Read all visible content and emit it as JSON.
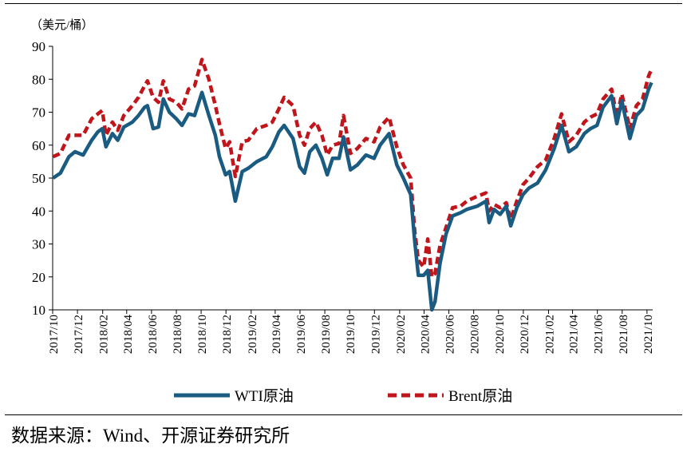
{
  "source_text": "数据来源：Wind、开源证券研究所",
  "chart_data": {
    "type": "line",
    "unit_label": "（美元/桶）",
    "ylim": [
      10,
      90
    ],
    "yticks": [
      10,
      20,
      30,
      40,
      50,
      60,
      70,
      80,
      90
    ],
    "xlim": [
      "2017-10",
      "2021-10"
    ],
    "xticks": [
      "2017/10",
      "2017/12",
      "2018/02",
      "2018/04",
      "2018/06",
      "2018/08",
      "2018/10",
      "2018/12",
      "2019/02",
      "2019/04",
      "2019/06",
      "2019/08",
      "2019/10",
      "2019/12",
      "2020/02",
      "2020/04",
      "2020/06",
      "2020/08",
      "2020/10",
      "2020/12",
      "2021/02",
      "2021/04",
      "2021/06",
      "2021/08",
      "2021/10"
    ],
    "grid": false,
    "legend_position": "bottom",
    "series": [
      {
        "name": "WTI原油",
        "color": "#1a5b82",
        "style": "solid",
        "points": [
          [
            "2017-10-02",
            50
          ],
          [
            "2017-10-20",
            51.5
          ],
          [
            "2017-11-10",
            56.5
          ],
          [
            "2017-11-25",
            58
          ],
          [
            "2017-12-15",
            57
          ],
          [
            "2018-01-05",
            61.5
          ],
          [
            "2018-01-20",
            64
          ],
          [
            "2018-01-31",
            65
          ],
          [
            "2018-02-09",
            59.5
          ],
          [
            "2018-02-25",
            63.5
          ],
          [
            "2018-03-10",
            61.5
          ],
          [
            "2018-03-25",
            65.5
          ],
          [
            "2018-04-15",
            67
          ],
          [
            "2018-04-30",
            69
          ],
          [
            "2018-05-15",
            71.5
          ],
          [
            "2018-05-22",
            72
          ],
          [
            "2018-06-05",
            65
          ],
          [
            "2018-06-18",
            65.5
          ],
          [
            "2018-06-30",
            74
          ],
          [
            "2018-07-15",
            70
          ],
          [
            "2018-08-01",
            68
          ],
          [
            "2018-08-15",
            66
          ],
          [
            "2018-08-31",
            69.5
          ],
          [
            "2018-09-15",
            69
          ],
          [
            "2018-10-03",
            76
          ],
          [
            "2018-10-20",
            69
          ],
          [
            "2018-11-05",
            63
          ],
          [
            "2018-11-15",
            56.5
          ],
          [
            "2018-11-30",
            51
          ],
          [
            "2018-12-10",
            52
          ],
          [
            "2018-12-24",
            43
          ],
          [
            "2019-01-10",
            52
          ],
          [
            "2019-01-25",
            53
          ],
          [
            "2019-02-15",
            55
          ],
          [
            "2019-03-10",
            56.5
          ],
          [
            "2019-03-25",
            59.5
          ],
          [
            "2019-04-10",
            64
          ],
          [
            "2019-04-23",
            66
          ],
          [
            "2019-05-15",
            62
          ],
          [
            "2019-05-31",
            53.5
          ],
          [
            "2019-06-12",
            51.5
          ],
          [
            "2019-06-25",
            58
          ],
          [
            "2019-07-10",
            60
          ],
          [
            "2019-07-25",
            56
          ],
          [
            "2019-08-07",
            51
          ],
          [
            "2019-08-20",
            56
          ],
          [
            "2019-09-05",
            56
          ],
          [
            "2019-09-16",
            62.5
          ],
          [
            "2019-10-03",
            52.5
          ],
          [
            "2019-10-20",
            54
          ],
          [
            "2019-11-10",
            57
          ],
          [
            "2019-11-30",
            56
          ],
          [
            "2019-12-15",
            60
          ],
          [
            "2020-01-06",
            63.5
          ],
          [
            "2020-01-25",
            54
          ],
          [
            "2020-02-10",
            50
          ],
          [
            "2020-02-28",
            45
          ],
          [
            "2020-03-09",
            31
          ],
          [
            "2020-03-18",
            20.5
          ],
          [
            "2020-03-31",
            20.5
          ],
          [
            "2020-04-10",
            22
          ],
          [
            "2020-04-20",
            10
          ],
          [
            "2020-04-28",
            12.5
          ],
          [
            "2020-05-10",
            24
          ],
          [
            "2020-05-25",
            33
          ],
          [
            "2020-06-10",
            38.5
          ],
          [
            "2020-06-30",
            39.5
          ],
          [
            "2020-07-15",
            40.5
          ],
          [
            "2020-08-10",
            41.5
          ],
          [
            "2020-08-31",
            43
          ],
          [
            "2020-09-08",
            36.5
          ],
          [
            "2020-09-20",
            40.5
          ],
          [
            "2020-10-05",
            39
          ],
          [
            "2020-10-20",
            41.5
          ],
          [
            "2020-10-31",
            35.5
          ],
          [
            "2020-11-15",
            41
          ],
          [
            "2020-11-30",
            45
          ],
          [
            "2020-12-15",
            47
          ],
          [
            "2021-01-05",
            48.5
          ],
          [
            "2021-01-25",
            52.5
          ],
          [
            "2021-02-15",
            59
          ],
          [
            "2021-03-05",
            66
          ],
          [
            "2021-03-23",
            58
          ],
          [
            "2021-04-10",
            59.5
          ],
          [
            "2021-04-30",
            63.5
          ],
          [
            "2021-05-15",
            65
          ],
          [
            "2021-05-31",
            66
          ],
          [
            "2021-06-15",
            71.5
          ],
          [
            "2021-07-06",
            75
          ],
          [
            "2021-07-19",
            66.5
          ],
          [
            "2021-07-31",
            73.5
          ],
          [
            "2021-08-20",
            62
          ],
          [
            "2021-09-05",
            69
          ],
          [
            "2021-09-20",
            71
          ],
          [
            "2021-10-05",
            77
          ],
          [
            "2021-10-12",
            79
          ]
        ]
      },
      {
        "name": "Brent原油",
        "color": "#c0151b",
        "style": "dashed",
        "points": [
          [
            "2017-10-02",
            56.5
          ],
          [
            "2017-10-20",
            57.5
          ],
          [
            "2017-11-10",
            63
          ],
          [
            "2017-11-25",
            63
          ],
          [
            "2017-12-15",
            63
          ],
          [
            "2018-01-05",
            68
          ],
          [
            "2018-01-20",
            69.5
          ],
          [
            "2018-01-31",
            70.5
          ],
          [
            "2018-02-09",
            63
          ],
          [
            "2018-02-25",
            67
          ],
          [
            "2018-03-10",
            64.5
          ],
          [
            "2018-03-25",
            69
          ],
          [
            "2018-04-15",
            72
          ],
          [
            "2018-04-30",
            74.5
          ],
          [
            "2018-05-15",
            78
          ],
          [
            "2018-05-22",
            79.5
          ],
          [
            "2018-06-05",
            74.5
          ],
          [
            "2018-06-18",
            73
          ],
          [
            "2018-06-30",
            79.5
          ],
          [
            "2018-07-15",
            74
          ],
          [
            "2018-08-01",
            73
          ],
          [
            "2018-08-15",
            71
          ],
          [
            "2018-08-31",
            77
          ],
          [
            "2018-09-15",
            78
          ],
          [
            "2018-10-03",
            86
          ],
          [
            "2018-10-20",
            80
          ],
          [
            "2018-11-05",
            72
          ],
          [
            "2018-11-15",
            66.5
          ],
          [
            "2018-11-30",
            59
          ],
          [
            "2018-12-10",
            61
          ],
          [
            "2018-12-24",
            50.5
          ],
          [
            "2019-01-10",
            61
          ],
          [
            "2019-01-25",
            61.5
          ],
          [
            "2019-02-15",
            65
          ],
          [
            "2019-03-10",
            66
          ],
          [
            "2019-03-25",
            67
          ],
          [
            "2019-04-10",
            71
          ],
          [
            "2019-04-23",
            74.5
          ],
          [
            "2019-05-15",
            72
          ],
          [
            "2019-05-31",
            63
          ],
          [
            "2019-06-12",
            60
          ],
          [
            "2019-06-25",
            65
          ],
          [
            "2019-07-10",
            67
          ],
          [
            "2019-07-25",
            63
          ],
          [
            "2019-08-07",
            57
          ],
          [
            "2019-08-20",
            60
          ],
          [
            "2019-09-05",
            60.5
          ],
          [
            "2019-09-16",
            69
          ],
          [
            "2019-10-03",
            57.5
          ],
          [
            "2019-10-20",
            59
          ],
          [
            "2019-11-10",
            62
          ],
          [
            "2019-11-30",
            61
          ],
          [
            "2019-12-15",
            65.5
          ],
          [
            "2020-01-06",
            68.5
          ],
          [
            "2020-01-25",
            59.5
          ],
          [
            "2020-02-10",
            54
          ],
          [
            "2020-02-28",
            50
          ],
          [
            "2020-03-09",
            34
          ],
          [
            "2020-03-18",
            25
          ],
          [
            "2020-03-31",
            23
          ],
          [
            "2020-04-10",
            31.5
          ],
          [
            "2020-04-20",
            20
          ],
          [
            "2020-04-28",
            21
          ],
          [
            "2020-05-10",
            29.5
          ],
          [
            "2020-05-25",
            35
          ],
          [
            "2020-06-10",
            41
          ],
          [
            "2020-06-30",
            41.5
          ],
          [
            "2020-07-15",
            43
          ],
          [
            "2020-08-10",
            44.5
          ],
          [
            "2020-08-31",
            45.5
          ],
          [
            "2020-09-08",
            40
          ],
          [
            "2020-09-20",
            42
          ],
          [
            "2020-10-05",
            41
          ],
          [
            "2020-10-20",
            42.5
          ],
          [
            "2020-10-31",
            37.5
          ],
          [
            "2020-11-15",
            43
          ],
          [
            "2020-11-30",
            48
          ],
          [
            "2020-12-15",
            50
          ],
          [
            "2021-01-05",
            53.5
          ],
          [
            "2021-01-25",
            55.5
          ],
          [
            "2021-02-15",
            62
          ],
          [
            "2021-03-05",
            69.5
          ],
          [
            "2021-03-23",
            61
          ],
          [
            "2021-04-10",
            63
          ],
          [
            "2021-04-30",
            67
          ],
          [
            "2021-05-15",
            68.5
          ],
          [
            "2021-05-31",
            69.5
          ],
          [
            "2021-06-15",
            74
          ],
          [
            "2021-07-06",
            77
          ],
          [
            "2021-07-19",
            68.5
          ],
          [
            "2021-07-31",
            75.5
          ],
          [
            "2021-08-20",
            65
          ],
          [
            "2021-09-05",
            72
          ],
          [
            "2021-09-20",
            74
          ],
          [
            "2021-10-05",
            81
          ],
          [
            "2021-10-12",
            83
          ]
        ]
      }
    ]
  }
}
